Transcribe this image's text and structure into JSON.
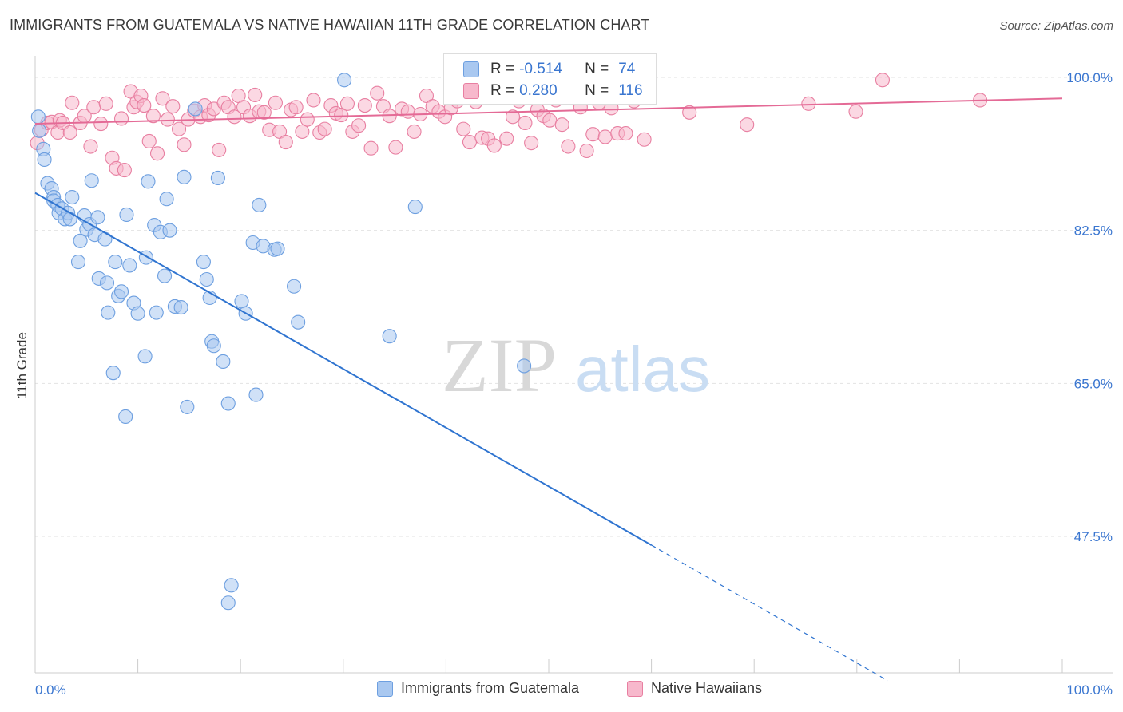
{
  "title": "IMMIGRANTS FROM GUATEMALA VS NATIVE HAWAIIAN 11TH GRADE CORRELATION CHART",
  "source": "Source: ZipAtlas.com",
  "watermark": {
    "zip": "ZIP",
    "atlas": "atlas"
  },
  "legend": {
    "rows": [
      {
        "r_label": "R =",
        "r_value": "-0.514",
        "n_label": "N =",
        "n_value": "74",
        "color": "#a9c8f0",
        "border": "#6d9fe0"
      },
      {
        "r_label": "R =",
        "r_value": "0.280",
        "n_label": "N =",
        "n_value": "116",
        "color": "#f7b8cc",
        "border": "#e87fa1"
      }
    ]
  },
  "bottom_legend": [
    {
      "label": "Immigrants from Guatemala",
      "color": "#a9c8f0",
      "border": "#6d9fe0"
    },
    {
      "label": "Native Hawaiians",
      "color": "#f7b8cc",
      "border": "#e87fa1"
    }
  ],
  "chart_data": {
    "type": "scatter",
    "title": "IMMIGRANTS FROM GUATEMALA VS NATIVE HAWAIIAN 11TH GRADE CORRELATION CHART",
    "xlabel": "",
    "ylabel": "11th Grade",
    "xlim": [
      0,
      100
    ],
    "ylim": [
      32,
      102
    ],
    "x_tick_labels": {
      "left": "0.0%",
      "right": "100.0%"
    },
    "y_ticks": [
      {
        "value": 100,
        "label": "100.0%"
      },
      {
        "value": 82.5,
        "label": "82.5%"
      },
      {
        "value": 65,
        "label": "65.0%"
      },
      {
        "value": 47.5,
        "label": "47.5%"
      }
    ],
    "grid": true,
    "legend_position": "top-center",
    "series": [
      {
        "name": "Immigrants from Guatemala",
        "color": "#6d9fe0",
        "fill": "#a9c8f0",
        "trend": {
          "x": [
            0,
            60
          ],
          "y": [
            86.8,
            46.5
          ],
          "dashed_to": [
            83.0,
            31.0
          ],
          "color": "#2f74d0"
        },
        "points": [
          [
            0.3,
            95.5
          ],
          [
            0.4,
            93.9
          ],
          [
            0.8,
            91.8
          ],
          [
            0.9,
            90.6
          ],
          [
            1.2,
            87.9
          ],
          [
            1.6,
            87.3
          ],
          [
            1.8,
            86.3
          ],
          [
            1.8,
            85.9
          ],
          [
            2.2,
            85.4
          ],
          [
            2.3,
            84.5
          ],
          [
            2.6,
            85.0
          ],
          [
            2.9,
            83.8
          ],
          [
            3.2,
            84.5
          ],
          [
            3.4,
            83.8
          ],
          [
            3.6,
            86.3
          ],
          [
            4.2,
            78.9
          ],
          [
            4.4,
            81.3
          ],
          [
            4.8,
            84.2
          ],
          [
            5.0,
            82.6
          ],
          [
            5.3,
            83.2
          ],
          [
            5.5,
            88.2
          ],
          [
            5.8,
            82.0
          ],
          [
            6.1,
            84.0
          ],
          [
            6.2,
            77.0
          ],
          [
            6.8,
            81.5
          ],
          [
            7.0,
            76.5
          ],
          [
            7.1,
            73.1
          ],
          [
            7.6,
            66.2
          ],
          [
            7.8,
            78.9
          ],
          [
            8.1,
            75.0
          ],
          [
            8.4,
            75.5
          ],
          [
            8.8,
            61.2
          ],
          [
            8.9,
            84.3
          ],
          [
            9.2,
            78.5
          ],
          [
            9.6,
            74.2
          ],
          [
            10.0,
            73.0
          ],
          [
            10.7,
            68.1
          ],
          [
            10.8,
            79.4
          ],
          [
            11.0,
            88.1
          ],
          [
            11.6,
            83.1
          ],
          [
            11.8,
            73.1
          ],
          [
            12.2,
            82.3
          ],
          [
            12.6,
            77.3
          ],
          [
            12.8,
            86.1
          ],
          [
            13.1,
            82.5
          ],
          [
            13.6,
            73.8
          ],
          [
            14.2,
            73.7
          ],
          [
            14.5,
            88.6
          ],
          [
            14.8,
            62.3
          ],
          [
            15.6,
            96.4
          ],
          [
            16.4,
            78.9
          ],
          [
            16.7,
            76.9
          ],
          [
            17.0,
            74.8
          ],
          [
            17.2,
            69.8
          ],
          [
            17.4,
            69.3
          ],
          [
            17.8,
            88.5
          ],
          [
            18.3,
            67.5
          ],
          [
            18.8,
            62.7
          ],
          [
            18.8,
            39.9
          ],
          [
            19.1,
            41.9
          ],
          [
            20.1,
            74.4
          ],
          [
            20.5,
            73.0
          ],
          [
            21.2,
            81.1
          ],
          [
            21.5,
            63.7
          ],
          [
            21.8,
            85.4
          ],
          [
            22.2,
            80.7
          ],
          [
            23.3,
            80.3
          ],
          [
            23.6,
            80.4
          ],
          [
            25.2,
            76.1
          ],
          [
            25.6,
            72.0
          ],
          [
            30.1,
            99.7
          ],
          [
            34.5,
            70.4
          ],
          [
            37.0,
            85.2
          ],
          [
            47.6,
            67.0
          ]
        ]
      },
      {
        "name": "Native Hawaiians",
        "color": "#e87fa1",
        "fill": "#f7b8cc",
        "trend": {
          "x": [
            0,
            100
          ],
          "y": [
            94.7,
            97.6
          ],
          "color": "#e46a96"
        },
        "points": [
          [
            0.2,
            92.5
          ],
          [
            0.6,
            94.0
          ],
          [
            1.2,
            94.8
          ],
          [
            1.6,
            94.9
          ],
          [
            2.2,
            93.7
          ],
          [
            2.4,
            95.1
          ],
          [
            2.7,
            94.8
          ],
          [
            3.4,
            93.7
          ],
          [
            3.6,
            97.1
          ],
          [
            4.4,
            94.8
          ],
          [
            4.8,
            95.6
          ],
          [
            5.4,
            92.1
          ],
          [
            5.7,
            96.6
          ],
          [
            6.4,
            94.7
          ],
          [
            6.9,
            97.0
          ],
          [
            7.5,
            90.8
          ],
          [
            7.9,
            89.6
          ],
          [
            8.4,
            95.3
          ],
          [
            8.7,
            89.4
          ],
          [
            9.3,
            98.4
          ],
          [
            9.6,
            96.6
          ],
          [
            9.9,
            97.2
          ],
          [
            10.3,
            97.9
          ],
          [
            10.6,
            96.8
          ],
          [
            11.1,
            92.7
          ],
          [
            11.5,
            95.6
          ],
          [
            11.9,
            91.3
          ],
          [
            12.4,
            97.6
          ],
          [
            12.9,
            95.2
          ],
          [
            13.4,
            96.7
          ],
          [
            14.0,
            94.1
          ],
          [
            14.5,
            92.3
          ],
          [
            14.9,
            95.2
          ],
          [
            15.5,
            96.2
          ],
          [
            16.1,
            95.5
          ],
          [
            16.5,
            96.8
          ],
          [
            16.9,
            95.7
          ],
          [
            17.4,
            96.4
          ],
          [
            17.9,
            91.7
          ],
          [
            18.4,
            97.1
          ],
          [
            18.8,
            96.6
          ],
          [
            19.4,
            95.5
          ],
          [
            19.8,
            97.9
          ],
          [
            20.3,
            96.6
          ],
          [
            20.9,
            95.6
          ],
          [
            21.4,
            98.0
          ],
          [
            21.8,
            96.1
          ],
          [
            22.3,
            96.0
          ],
          [
            22.8,
            94.0
          ],
          [
            23.4,
            97.1
          ],
          [
            23.8,
            93.8
          ],
          [
            24.4,
            92.6
          ],
          [
            24.9,
            96.3
          ],
          [
            25.4,
            96.6
          ],
          [
            26.0,
            93.8
          ],
          [
            26.5,
            95.2
          ],
          [
            27.1,
            97.4
          ],
          [
            27.7,
            93.7
          ],
          [
            28.2,
            94.1
          ],
          [
            28.8,
            96.8
          ],
          [
            29.3,
            95.9
          ],
          [
            29.8,
            95.7
          ],
          [
            30.4,
            97.0
          ],
          [
            30.9,
            93.8
          ],
          [
            31.5,
            94.5
          ],
          [
            32.1,
            96.8
          ],
          [
            32.7,
            91.9
          ],
          [
            33.3,
            98.2
          ],
          [
            33.9,
            96.7
          ],
          [
            34.5,
            95.6
          ],
          [
            35.1,
            92.0
          ],
          [
            35.7,
            96.4
          ],
          [
            36.3,
            96.1
          ],
          [
            36.9,
            93.8
          ],
          [
            37.5,
            95.8
          ],
          [
            38.1,
            97.9
          ],
          [
            38.7,
            96.7
          ],
          [
            39.3,
            96.1
          ],
          [
            39.9,
            95.5
          ],
          [
            40.5,
            96.5
          ],
          [
            41.1,
            97.3
          ],
          [
            41.7,
            94.1
          ],
          [
            42.3,
            92.6
          ],
          [
            42.9,
            97.2
          ],
          [
            43.5,
            93.1
          ],
          [
            44.1,
            93.0
          ],
          [
            44.7,
            92.2
          ],
          [
            45.3,
            97.8
          ],
          [
            45.9,
            93.0
          ],
          [
            46.5,
            95.5
          ],
          [
            47.1,
            97.3
          ],
          [
            47.7,
            94.8
          ],
          [
            48.3,
            92.5
          ],
          [
            48.9,
            96.3
          ],
          [
            49.5,
            95.6
          ],
          [
            50.1,
            95.1
          ],
          [
            50.7,
            97.4
          ],
          [
            51.3,
            94.6
          ],
          [
            51.9,
            92.1
          ],
          [
            52.5,
            97.8
          ],
          [
            53.1,
            96.6
          ],
          [
            53.7,
            91.6
          ],
          [
            54.3,
            93.5
          ],
          [
            54.9,
            97.1
          ],
          [
            55.5,
            93.2
          ],
          [
            56.1,
            96.5
          ],
          [
            56.7,
            93.6
          ],
          [
            57.5,
            93.6
          ],
          [
            58.3,
            97.3
          ],
          [
            59.3,
            92.9
          ],
          [
            63.7,
            96.0
          ],
          [
            69.3,
            94.6
          ],
          [
            75.3,
            97.0
          ],
          [
            79.9,
            96.1
          ],
          [
            82.5,
            99.7
          ],
          [
            92.0,
            97.4
          ]
        ]
      }
    ]
  }
}
